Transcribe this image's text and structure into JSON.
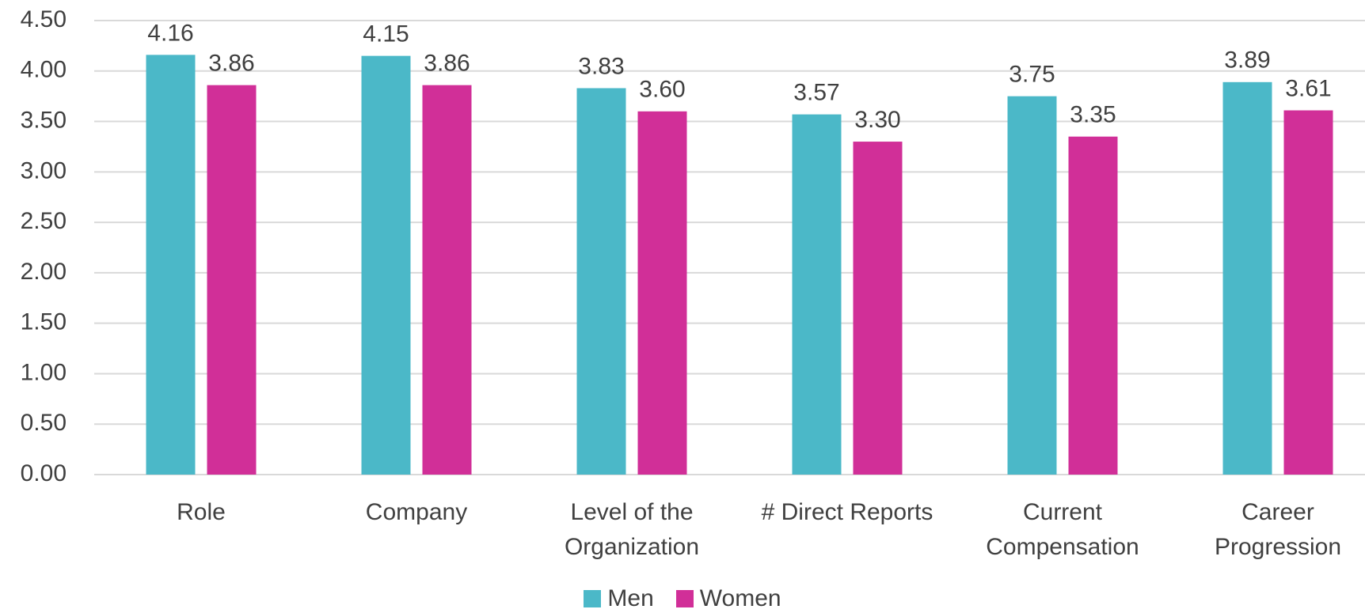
{
  "chart_data": {
    "type": "bar",
    "categories": [
      "Role",
      "Company",
      "Level of the Organization",
      "# Direct Reports",
      "Current Compensation",
      "Career Progression"
    ],
    "series": [
      {
        "name": "Men",
        "color": "#4bb8c8",
        "values": [
          4.16,
          4.15,
          3.83,
          3.57,
          3.75,
          3.89
        ],
        "value_labels": [
          "4.16",
          "4.15",
          "3.83",
          "3.57",
          "3.75",
          "3.89"
        ]
      },
      {
        "name": "Women",
        "color": "#d12f98",
        "values": [
          3.86,
          3.86,
          3.6,
          3.3,
          3.35,
          3.61
        ],
        "value_labels": [
          "3.86",
          "3.86",
          "3.60",
          "3.30",
          "3.35",
          "3.61"
        ]
      }
    ],
    "ylim": [
      0,
      4.5
    ],
    "yticks": [
      {
        "value": 0,
        "label": "0.00"
      },
      {
        "value": 0.5,
        "label": "0.50"
      },
      {
        "value": 1,
        "label": "1.00"
      },
      {
        "value": 1.5,
        "label": "1.50"
      },
      {
        "value": 2,
        "label": "2.00"
      },
      {
        "value": 2.5,
        "label": "2.50"
      },
      {
        "value": 3,
        "label": "3.00"
      },
      {
        "value": 3.5,
        "label": "3.50"
      },
      {
        "value": 4,
        "label": "4.00"
      },
      {
        "value": 4.5,
        "label": "4.50"
      }
    ],
    "grid": true,
    "legend": "bottom"
  }
}
